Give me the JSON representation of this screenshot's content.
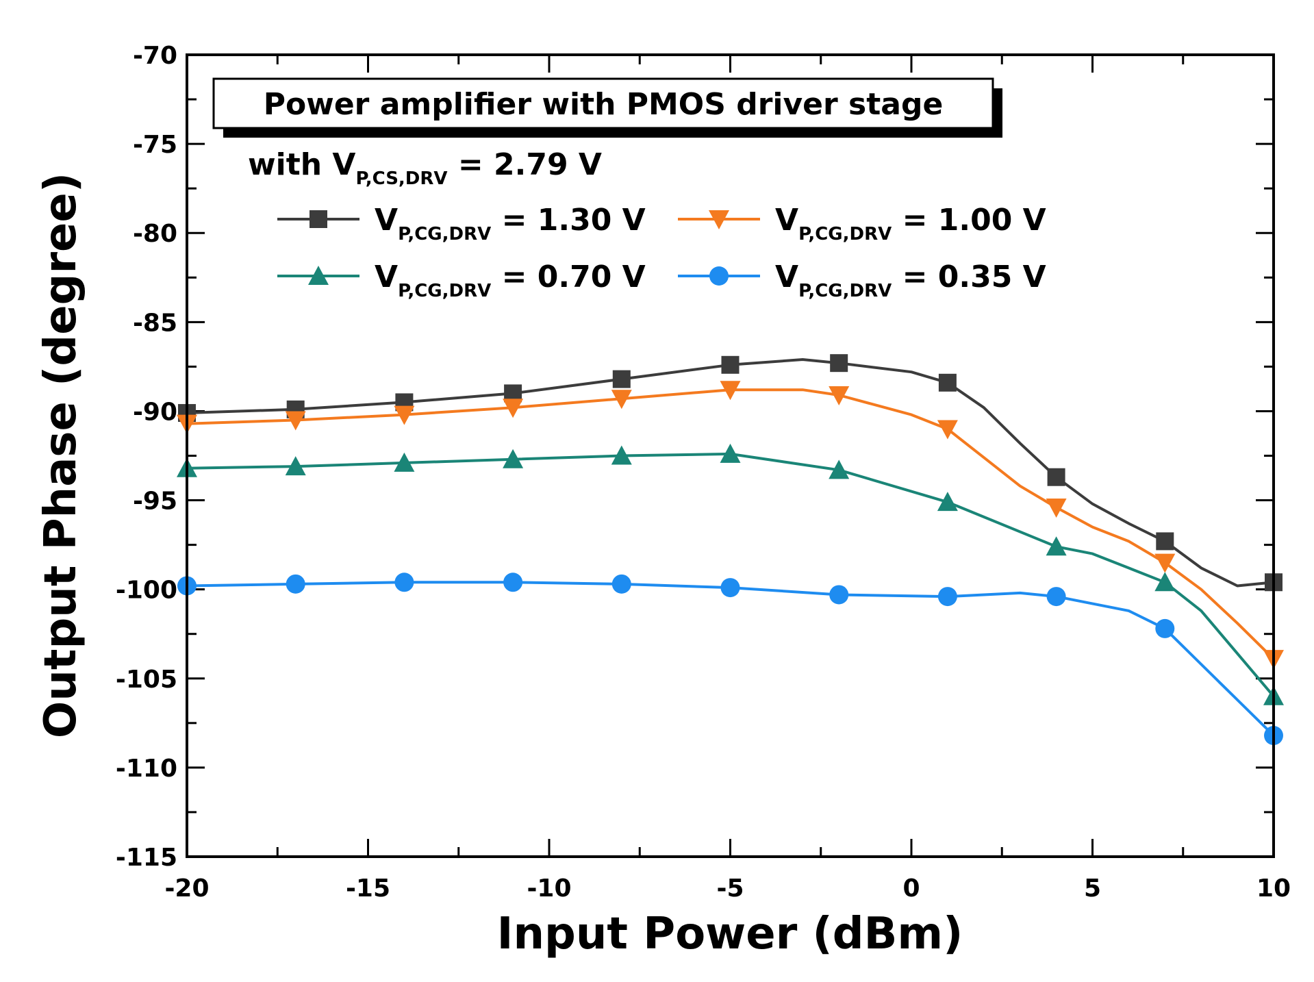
{
  "chart_data": {
    "type": "line",
    "title": "Power amplifier with PMOS driver stage",
    "subtitle": {
      "prefix": "with V",
      "subscript": "P,CS,DRV",
      "suffix": " = 2.79 V"
    },
    "xlabel": "Input Power (dBm)",
    "ylabel": "Output Phase (degree)",
    "xlim": [
      -20,
      10
    ],
    "ylim": [
      -115,
      -70
    ],
    "xticks": [
      -20,
      -15,
      -10,
      -5,
      0,
      5,
      10
    ],
    "xtick_labels": [
      "-20",
      "-15",
      "-10",
      "-5",
      "0",
      "5",
      "10"
    ],
    "yticks": [
      -70,
      -75,
      -80,
      -85,
      -90,
      -95,
      -100,
      -105,
      -110,
      -115
    ],
    "ytick_labels": [
      "-70",
      "-75",
      "-80",
      "-85",
      "-90",
      "-95",
      "-100",
      "-105",
      "-110",
      "-115"
    ],
    "x": [
      -20,
      -17,
      -14,
      -11,
      -8,
      -5,
      -2,
      1,
      4,
      7,
      10
    ],
    "legend_position": "top-left",
    "series": [
      {
        "name": "V_P,CG,DRV = 1.30 V",
        "label_main": "V",
        "label_sub": "P,CG,DRV",
        "label_value": " = 1.30 V",
        "color": "#3c3c3c",
        "marker": "square",
        "values": [
          -90.1,
          -89.9,
          -89.5,
          -89.0,
          -88.2,
          -87.4,
          -87.3,
          -88.4,
          -93.7,
          -97.3,
          -99.6
        ],
        "curve_x": [
          -20,
          -17,
          -14,
          -11,
          -8,
          -5,
          -3,
          -2,
          0,
          1,
          2,
          3,
          4,
          5,
          6,
          7,
          8,
          9,
          10
        ],
        "curve_y": [
          -90.1,
          -89.9,
          -89.5,
          -89.0,
          -88.2,
          -87.4,
          -87.1,
          -87.3,
          -87.8,
          -88.4,
          -89.8,
          -91.8,
          -93.7,
          -95.2,
          -96.3,
          -97.3,
          -98.8,
          -99.8,
          -99.6
        ]
      },
      {
        "name": "V_P,CG,DRV = 1.00 V",
        "label_main": "V",
        "label_sub": "P,CG,DRV",
        "label_value": " = 1.00 V",
        "color": "#f47a1f",
        "marker": "triangle-down",
        "values": [
          -90.7,
          -90.5,
          -90.2,
          -89.8,
          -89.3,
          -88.8,
          -89.1,
          -91.0,
          -95.4,
          -98.5,
          -103.9
        ],
        "curve_x": [
          -20,
          -17,
          -14,
          -11,
          -8,
          -5,
          -3,
          -2,
          0,
          1,
          2,
          3,
          4,
          5,
          6,
          7,
          8,
          9,
          10
        ],
        "curve_y": [
          -90.7,
          -90.5,
          -90.2,
          -89.8,
          -89.3,
          -88.8,
          -88.8,
          -89.1,
          -90.2,
          -91.0,
          -92.6,
          -94.2,
          -95.4,
          -96.5,
          -97.3,
          -98.5,
          -100.0,
          -101.9,
          -103.9
        ]
      },
      {
        "name": "V_P,CG,DRV = 0.70 V",
        "label_main": "V",
        "label_sub": "P,CG,DRV",
        "label_value": " = 0.70 V",
        "color": "#1a8577",
        "marker": "triangle-up",
        "values": [
          -93.2,
          -93.1,
          -92.9,
          -92.7,
          -92.5,
          -92.4,
          -93.3,
          -95.1,
          -97.6,
          -99.6,
          -106.0
        ],
        "curve_x": [
          -20,
          -17,
          -14,
          -11,
          -8,
          -5,
          -2,
          1,
          4,
          5,
          6,
          7,
          8,
          9,
          10
        ],
        "curve_y": [
          -93.2,
          -93.1,
          -92.9,
          -92.7,
          -92.5,
          -92.4,
          -93.3,
          -95.1,
          -97.6,
          -98.0,
          -98.8,
          -99.6,
          -101.2,
          -103.6,
          -106.0
        ]
      },
      {
        "name": "V_P,CG,DRV = 0.35 V",
        "label_main": "V",
        "label_sub": "P,CG,DRV",
        "label_value": " = 0.35 V",
        "color": "#1e8cf0",
        "marker": "circle",
        "values": [
          -99.8,
          -99.7,
          -99.6,
          -99.6,
          -99.7,
          -99.9,
          -100.3,
          -100.4,
          -100.4,
          -102.2,
          -108.2
        ],
        "curve_x": [
          -20,
          -17,
          -14,
          -11,
          -8,
          -5,
          -2,
          1,
          3,
          4,
          6,
          7,
          8,
          9,
          10
        ],
        "curve_y": [
          -99.8,
          -99.7,
          -99.6,
          -99.6,
          -99.7,
          -99.9,
          -100.3,
          -100.4,
          -100.2,
          -100.4,
          -101.2,
          -102.2,
          -104.2,
          -106.2,
          -108.2
        ]
      }
    ]
  }
}
